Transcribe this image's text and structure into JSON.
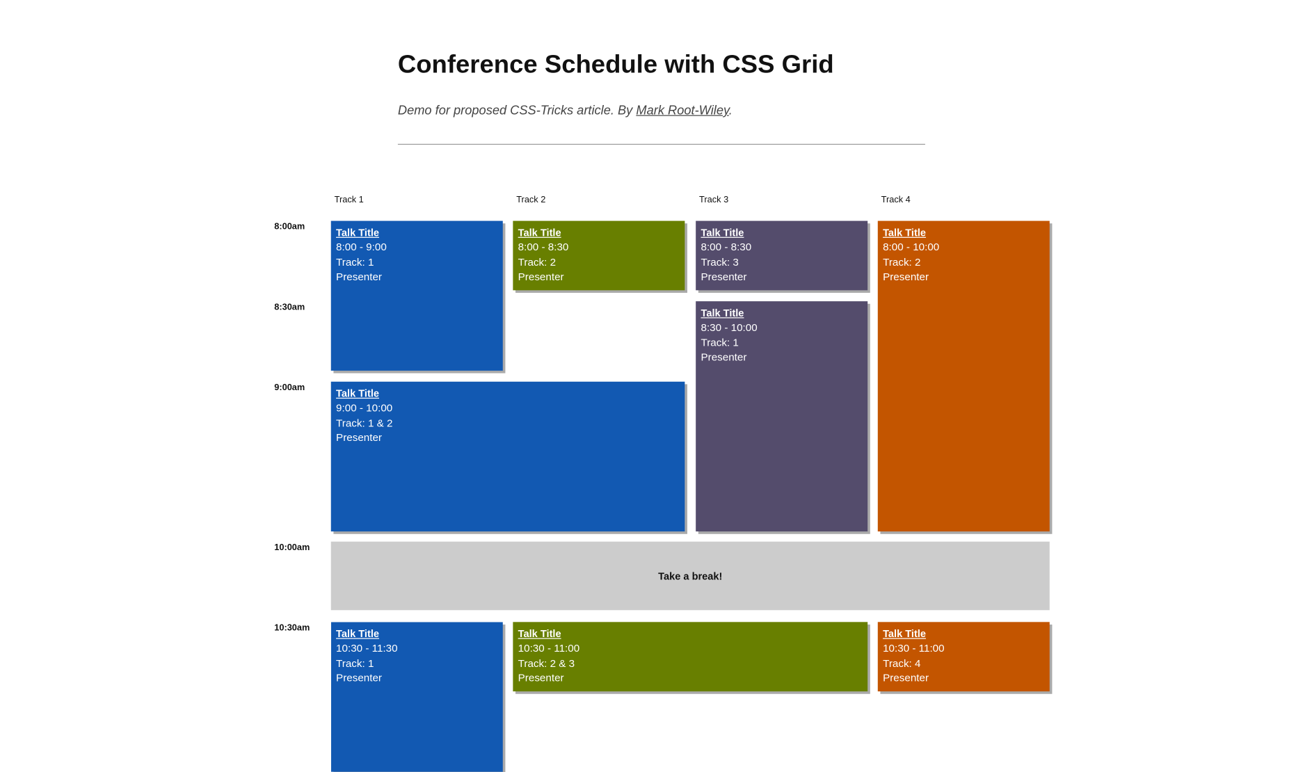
{
  "header": {
    "title": "Conference Schedule with CSS Grid",
    "subtitle_before": "Demo for proposed CSS-Tricks article. By ",
    "author_link": "Mark Root-Wiley",
    "subtitle_after": "."
  },
  "tracks": [
    "Track 1",
    "Track 2",
    "Track 3",
    "Track 4"
  ],
  "times": [
    "8:00am",
    "8:30am",
    "9:00am",
    "10:00am",
    "10:30am"
  ],
  "sessions": [
    {
      "title": "Talk Title",
      "time": "8:00 - 9:00",
      "track": "Track: 1",
      "presenter": "Presenter"
    },
    {
      "title": "Talk Title",
      "time": "8:00 - 8:30",
      "track": "Track: 2",
      "presenter": "Presenter"
    },
    {
      "title": "Talk Title",
      "time": "8:00 - 8:30",
      "track": "Track: 3",
      "presenter": "Presenter"
    },
    {
      "title": "Talk Title",
      "time": "8:00 - 10:00",
      "track": "Track: 2",
      "presenter": "Presenter"
    },
    {
      "title": "Talk Title",
      "time": "8:30 - 10:00",
      "track": "Track: 1",
      "presenter": "Presenter"
    },
    {
      "title": "Talk Title",
      "time": "9:00 - 10:00",
      "track": "Track: 1 & 2",
      "presenter": "Presenter"
    },
    {
      "title": "Talk Title",
      "time": "10:30 - 11:30",
      "track": "Track: 1",
      "presenter": "Presenter"
    },
    {
      "title": "Talk Title",
      "time": "10:30 - 11:00",
      "track": "Track: 2 & 3",
      "presenter": "Presenter"
    },
    {
      "title": "Talk Title",
      "time": "10:30 - 11:00",
      "track": "Track: 4",
      "presenter": "Presenter"
    }
  ],
  "break": "Take a break!"
}
